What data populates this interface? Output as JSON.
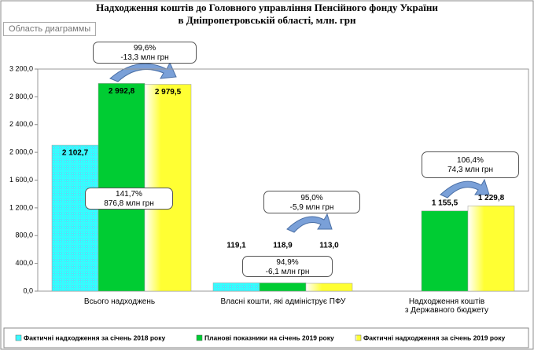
{
  "chart_data": {
    "type": "bar",
    "title": "Надходження коштів до Головного управління Пенсійного фонду України",
    "subtitle": "в Дніпропетровській області, млн. грн",
    "tooltip": "Область диаграммы",
    "categories": [
      "Всього надходжень",
      "Власні кошти, які адмініструє ПФУ",
      "Надходження коштів\nз Державного бюджету"
    ],
    "series": [
      {
        "name": "Фактичні надходження за січень 2018 року",
        "color": "#33ffff",
        "values": [
          2102.7,
          119.1,
          null
        ],
        "value_labels": [
          "2 102,7",
          "119,1",
          null
        ]
      },
      {
        "name": "Планові показники на січень 2019 року",
        "color": "#00cc33",
        "values": [
          2992.8,
          118.9,
          1155.5
        ],
        "value_labels": [
          "2 992,8",
          "118,9",
          "1 155,5"
        ]
      },
      {
        "name": "Фактичні надходження за січень 2019 року",
        "color": "#ffff33",
        "values": [
          2979.5,
          113.0,
          1229.8
        ],
        "value_labels": [
          "2 979,5",
          "113,0",
          "1 229,8"
        ]
      }
    ],
    "ylim": [
      0,
      3200
    ],
    "yticks": [
      {
        "value": 0,
        "label": "0,0"
      },
      {
        "value": 400,
        "label": "400,0"
      },
      {
        "value": 800,
        "label": "800,0"
      },
      {
        "value": 1200,
        "label": "1 200,0"
      },
      {
        "value": 1600,
        "label": "1 600,0"
      },
      {
        "value": 2000,
        "label": "2 000,0"
      },
      {
        "value": 2400,
        "label": "2 400,0"
      },
      {
        "value": 2800,
        "label": "2 800,0"
      },
      {
        "value": 3200,
        "label": "3 200,0"
      }
    ],
    "annotations": [
      "99,6%\n-13,3 млн грн",
      "141,7%\n876,8 млн грн",
      "95,0%\n-5,9 млн грн",
      "94,9%\n-6,1 млн грн",
      "106,4%\n74,3 млн грн"
    ]
  }
}
